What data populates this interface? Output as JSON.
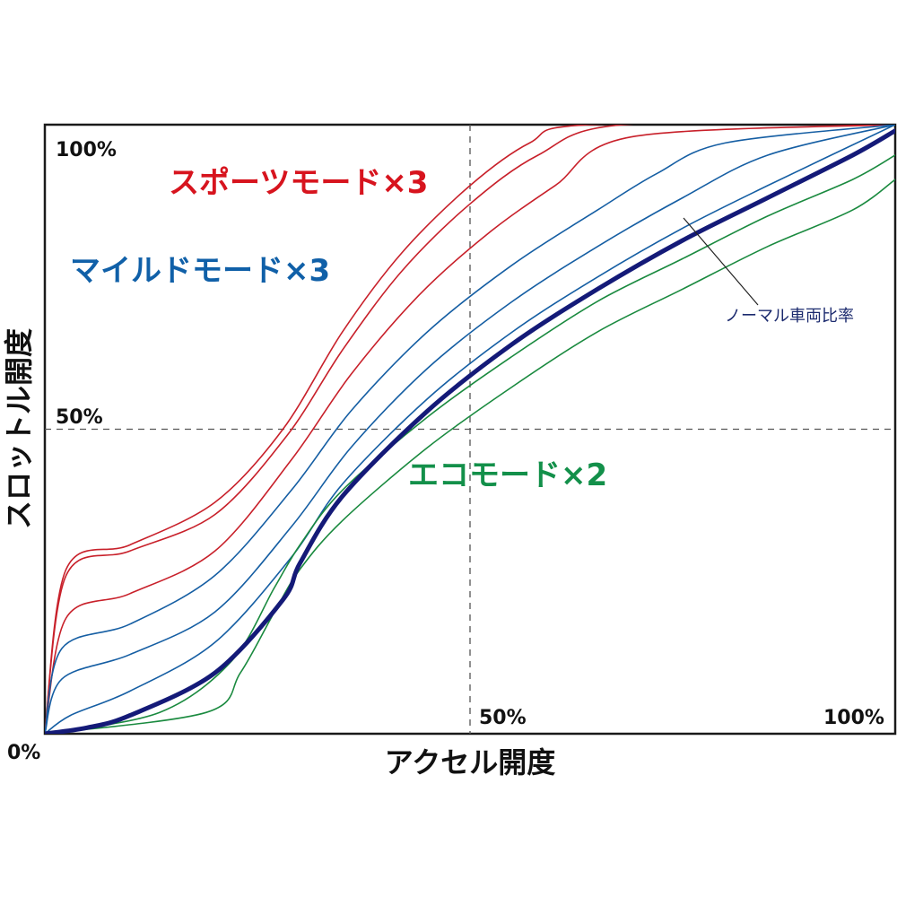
{
  "chart_data": {
    "type": "line",
    "title": "",
    "xlabel": "アクセル開度",
    "ylabel": "スロットル開度",
    "xlim": [
      0,
      100
    ],
    "ylim": [
      0,
      100
    ],
    "x_ticks": [
      {
        "value": 50,
        "label": "50%"
      },
      {
        "value": 100,
        "label": "100%"
      }
    ],
    "y_ticks": [
      {
        "value": 50,
        "label": "50%"
      },
      {
        "value": 100,
        "label": "100%"
      }
    ],
    "origin_label": "0%",
    "reference_lines": [
      {
        "axis": "x",
        "value": 50,
        "style": "dashed"
      },
      {
        "axis": "y",
        "value": 50,
        "style": "dashed"
      }
    ],
    "annotations": [
      {
        "text": "スポーツモード×3",
        "color": "#d7141e"
      },
      {
        "text": "マイルドモード×3",
        "color": "#1060a8"
      },
      {
        "text": "エコモード×2",
        "color": "#13904a"
      },
      {
        "text": "ノーマル車両比率",
        "color": "#1b2a6e",
        "points_to": "normal"
      }
    ],
    "colors": {
      "sport": "#c8202a",
      "mild": "#155ea3",
      "normal": "#141a78",
      "eco": "#1a8a3f"
    },
    "series": [
      {
        "name": "sport-3",
        "group": "sport",
        "x": [
          0,
          2.5,
          10,
          20,
          28,
          35,
          42,
          50,
          57,
          64,
          100
        ],
        "y": [
          0,
          27,
          31,
          38,
          50,
          66,
          79,
          90,
          97,
          100,
          100
        ]
      },
      {
        "name": "sport-2",
        "group": "sport",
        "x": [
          0,
          2.5,
          10,
          20,
          28.5,
          35,
          42,
          50,
          58,
          68,
          100
        ],
        "y": [
          0,
          26,
          30,
          36,
          49,
          63,
          76,
          87,
          95,
          100,
          100
        ]
      },
      {
        "name": "sport-1",
        "group": "sport",
        "x": [
          0,
          2.5,
          10,
          20,
          29,
          36,
          44,
          52,
          60,
          69,
          100
        ],
        "y": [
          0,
          19,
          23,
          30,
          45,
          59,
          72,
          82,
          90,
          98,
          100
        ]
      },
      {
        "name": "mild-3",
        "group": "mild",
        "x": [
          0,
          2,
          10,
          20,
          29,
          36,
          45,
          55,
          65,
          72,
          80,
          100
        ],
        "y": [
          0,
          14,
          18,
          26,
          40,
          53,
          66,
          77,
          86,
          92,
          97,
          100
        ]
      },
      {
        "name": "mild-2",
        "group": "mild",
        "x": [
          0,
          2,
          10,
          20,
          29,
          36,
          45,
          55,
          65,
          75,
          85,
          100
        ],
        "y": [
          0,
          9,
          13,
          20,
          34,
          47,
          60,
          71,
          80,
          88,
          95,
          100
        ]
      },
      {
        "name": "mild-1",
        "group": "mild",
        "x": [
          0,
          3,
          10,
          20,
          29,
          35,
          45,
          55,
          65,
          75,
          85,
          100
        ],
        "y": [
          0,
          3,
          7,
          15,
          29,
          41,
          55,
          66,
          75,
          83,
          90,
          100
        ]
      },
      {
        "name": "normal",
        "group": "normal",
        "x": [
          0,
          5,
          10,
          20,
          28,
          30,
          35,
          45,
          55,
          65,
          75,
          85,
          95,
          100
        ],
        "y": [
          0,
          1,
          3,
          10,
          22,
          28,
          39,
          53,
          64,
          73,
          81,
          88,
          95,
          99
        ]
      },
      {
        "name": "eco-1",
        "group": "eco",
        "x": [
          0,
          13.5,
          22,
          27,
          30,
          35,
          45,
          55,
          65,
          75,
          85,
          95,
          100
        ],
        "y": [
          0,
          3.5,
          12,
          24,
          31,
          40,
          52,
          62,
          71,
          78,
          85,
          91,
          95
        ]
      },
      {
        "name": "eco-2",
        "group": "eco",
        "x": [
          0,
          19,
          23,
          27,
          30,
          35,
          45,
          55,
          65,
          75,
          85,
          95,
          100
        ],
        "y": [
          0,
          3.5,
          10,
          20,
          27,
          35,
          47,
          57,
          66,
          73,
          80,
          86,
          91
        ]
      }
    ]
  }
}
